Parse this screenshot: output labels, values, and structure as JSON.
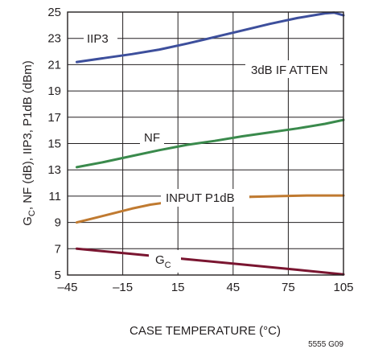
{
  "chart_data": {
    "type": "line",
    "title": "",
    "xlabel": "CASE TEMPERATURE (°C)",
    "ylabel_parts": [
      "G",
      "C",
      ", NF (dB), IIP3, P1dB  (dBm)"
    ],
    "xlim": [
      -45,
      105
    ],
    "ylim": [
      5,
      25
    ],
    "xticks": [
      -45,
      -15,
      15,
      45,
      75,
      105
    ],
    "xtick_labels": [
      "–45",
      "–15",
      "15",
      "45",
      "75",
      "105"
    ],
    "yticks": [
      5,
      7,
      9,
      11,
      13,
      15,
      17,
      19,
      21,
      23,
      25
    ],
    "grid": true,
    "legend": "none",
    "figure_id": "5555 G09",
    "series": [
      {
        "name": "IIP3",
        "color": "#3d4f9c",
        "x": [
          -40,
          -25,
          -10,
          5,
          20,
          35,
          50,
          65,
          80,
          95,
          100,
          105
        ],
        "y": [
          21.2,
          21.5,
          21.8,
          22.15,
          22.6,
          23.1,
          23.6,
          24.1,
          24.55,
          24.9,
          24.95,
          24.75
        ]
      },
      {
        "name": "NF",
        "color": "#3a8a4c",
        "x": [
          -40,
          -25,
          -10,
          5,
          20,
          35,
          50,
          65,
          80,
          95,
          105
        ],
        "y": [
          13.2,
          13.6,
          14.05,
          14.5,
          14.9,
          15.2,
          15.55,
          15.85,
          16.15,
          16.5,
          16.8
        ]
      },
      {
        "name": "INPUT P1dB",
        "color": "#c07a30",
        "x": [
          -40,
          -30,
          -20,
          -10,
          0,
          10,
          25,
          40,
          55,
          70,
          85,
          95,
          105
        ],
        "y": [
          9.0,
          9.35,
          9.7,
          10.05,
          10.35,
          10.55,
          10.75,
          10.85,
          10.95,
          11.0,
          11.05,
          11.05,
          11.05
        ]
      },
      {
        "name": "G_C",
        "color": "#7a1530",
        "x": [
          -40,
          -10,
          20,
          50,
          80,
          105
        ],
        "y": [
          7.0,
          6.6,
          6.2,
          5.8,
          5.4,
          5.05
        ]
      }
    ],
    "annotations": [
      {
        "text": "IIP3",
        "series": "IIP3"
      },
      {
        "text": "3dB IF ATTEN",
        "series": ""
      },
      {
        "text": "NF",
        "series": "NF"
      },
      {
        "text": "INPUT P1dB",
        "series": "INPUT P1dB"
      },
      {
        "text_main": "G",
        "text_sub": "C",
        "series": "G_C"
      }
    ]
  }
}
